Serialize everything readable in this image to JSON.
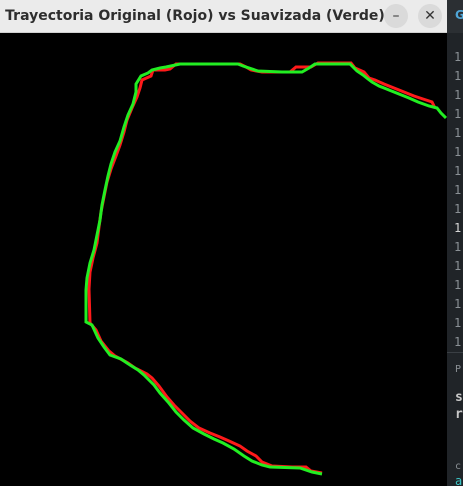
{
  "window": {
    "title": "Trayectoria Original (Rojo) vs Suavizada (Verde)",
    "minimize_glyph": "–",
    "close_glyph": "✕"
  },
  "colors": {
    "original": "#ff1a1a",
    "smoothed": "#22ee22",
    "background": "#000000"
  },
  "trajectories": {
    "original": [
      [
        142,
        80
      ],
      [
        151,
        76
      ],
      [
        153,
        70
      ],
      [
        165,
        70
      ],
      [
        170,
        69
      ],
      [
        176,
        64
      ],
      [
        240,
        64
      ],
      [
        246,
        67
      ],
      [
        251,
        70
      ],
      [
        262,
        72
      ],
      [
        290,
        72
      ],
      [
        296,
        67
      ],
      [
        311,
        67
      ],
      [
        318,
        63
      ],
      [
        351,
        63
      ],
      [
        355,
        68
      ],
      [
        364,
        72
      ],
      [
        369,
        78
      ],
      [
        375,
        80
      ],
      [
        384,
        84
      ],
      [
        394,
        88
      ],
      [
        404,
        92
      ],
      [
        414,
        96
      ],
      [
        423,
        99
      ],
      [
        432,
        102
      ],
      [
        435,
        108
      ],
      [
        140,
        88
      ],
      [
        137,
        97
      ],
      [
        132,
        108
      ],
      [
        127,
        120
      ],
      [
        124,
        132
      ],
      [
        120,
        145
      ],
      [
        116,
        156
      ],
      [
        111,
        169
      ],
      [
        107,
        182
      ],
      [
        104,
        197
      ],
      [
        101,
        212
      ],
      [
        99,
        227
      ],
      [
        97,
        243
      ],
      [
        93,
        258
      ],
      [
        90,
        272
      ],
      [
        89,
        289
      ],
      [
        90,
        323
      ],
      [
        96,
        330
      ],
      [
        101,
        341
      ],
      [
        109,
        351
      ],
      [
        115,
        356
      ],
      [
        128,
        363
      ],
      [
        135,
        368
      ],
      [
        147,
        374
      ],
      [
        152,
        378
      ],
      [
        159,
        386
      ],
      [
        167,
        397
      ],
      [
        174,
        405
      ],
      [
        183,
        414
      ],
      [
        190,
        421
      ],
      [
        199,
        428
      ],
      [
        210,
        433
      ],
      [
        220,
        437
      ],
      [
        229,
        441
      ],
      [
        240,
        446
      ],
      [
        247,
        451
      ],
      [
        256,
        456
      ],
      [
        262,
        462
      ],
      [
        272,
        466
      ],
      [
        292,
        467
      ],
      [
        306,
        467
      ],
      [
        311,
        471
      ],
      [
        322,
        473
      ]
    ],
    "smoothed": [
      [
        136,
        84
      ],
      [
        141,
        76
      ],
      [
        148,
        73
      ],
      [
        152,
        70
      ],
      [
        160,
        68
      ],
      [
        166,
        67
      ],
      [
        180,
        64
      ],
      [
        238,
        64
      ],
      [
        243,
        66
      ],
      [
        258,
        71
      ],
      [
        282,
        72
      ],
      [
        302,
        72
      ],
      [
        309,
        68
      ],
      [
        315,
        64
      ],
      [
        350,
        64
      ],
      [
        357,
        71
      ],
      [
        363,
        75
      ],
      [
        368,
        79
      ],
      [
        372,
        82
      ],
      [
        379,
        86
      ],
      [
        389,
        90
      ],
      [
        399,
        94
      ],
      [
        409,
        98
      ],
      [
        418,
        102
      ],
      [
        429,
        106
      ],
      [
        437,
        108
      ],
      [
        441,
        113
      ],
      [
        446,
        118
      ],
      [
        136,
        92
      ],
      [
        133,
        104
      ],
      [
        128,
        115
      ],
      [
        124,
        127
      ],
      [
        120,
        141
      ],
      [
        115,
        152
      ],
      [
        111,
        164
      ],
      [
        108,
        176
      ],
      [
        105,
        190
      ],
      [
        102,
        205
      ],
      [
        100,
        220
      ],
      [
        97,
        235
      ],
      [
        94,
        250
      ],
      [
        90,
        263
      ],
      [
        87,
        278
      ],
      [
        86,
        290
      ],
      [
        86,
        322
      ],
      [
        92,
        325
      ],
      [
        98,
        338
      ],
      [
        104,
        347
      ],
      [
        110,
        355
      ],
      [
        121,
        359
      ],
      [
        130,
        365
      ],
      [
        138,
        370
      ],
      [
        144,
        375
      ],
      [
        149,
        380
      ],
      [
        154,
        385
      ],
      [
        160,
        393
      ],
      [
        168,
        402
      ],
      [
        176,
        412
      ],
      [
        184,
        420
      ],
      [
        193,
        428
      ],
      [
        204,
        434
      ],
      [
        214,
        439
      ],
      [
        223,
        443
      ],
      [
        234,
        449
      ],
      [
        244,
        456
      ],
      [
        252,
        461
      ],
      [
        262,
        465
      ],
      [
        270,
        467
      ],
      [
        300,
        468
      ],
      [
        312,
        472
      ],
      [
        322,
        474
      ]
    ]
  },
  "side_panel": {
    "header_glyph": "G",
    "line_numbers": [
      "1",
      "1",
      "1",
      "1",
      "1",
      "1",
      "1",
      "1",
      "1",
      "1",
      "1",
      "1",
      "1",
      "1",
      "1",
      "1"
    ],
    "active_index": 9,
    "section_label": "P",
    "text_line1": "s",
    "text_line2": "r",
    "footer_label": "c",
    "footer_text": "a"
  }
}
